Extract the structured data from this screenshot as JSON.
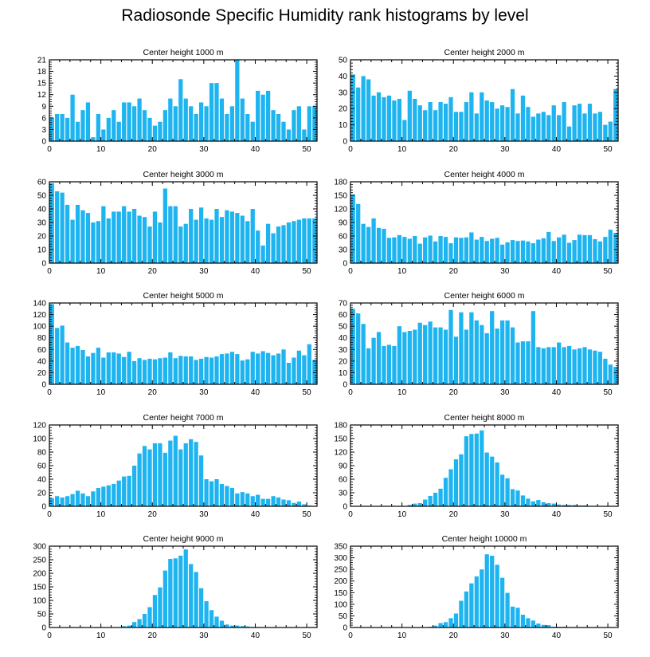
{
  "title": "Radiosonde Specific Humidity rank histograms by level",
  "bar_color": "#1EB4F0",
  "chart_data": [
    {
      "type": "bar",
      "title": "Center height 1000 m",
      "xlim": [
        0,
        52
      ],
      "ylim": [
        0,
        21
      ],
      "xticks": [
        0,
        10,
        20,
        30,
        40,
        50
      ],
      "yticks": [
        0,
        3,
        6,
        9,
        12,
        15,
        18,
        21
      ],
      "values": [
        6,
        7,
        7,
        6,
        12,
        5,
        8,
        10,
        1,
        7,
        3,
        6,
        8,
        5,
        10,
        10,
        9,
        11,
        8,
        6,
        4,
        5,
        8,
        11,
        9,
        16,
        11,
        9,
        7,
        10,
        9,
        15,
        15,
        11,
        7,
        9,
        21,
        11,
        7,
        5,
        13,
        12,
        13,
        8,
        7,
        5,
        3,
        8,
        9,
        3,
        9,
        9
      ]
    },
    {
      "type": "bar",
      "title": "Center height 2000 m",
      "xlim": [
        0,
        52
      ],
      "ylim": [
        0,
        50
      ],
      "xticks": [
        0,
        10,
        20,
        30,
        40,
        50
      ],
      "yticks": [
        0,
        10,
        20,
        30,
        40,
        50
      ],
      "values": [
        41,
        33,
        40,
        38,
        28,
        30,
        27,
        28,
        25,
        26,
        13,
        31,
        26,
        22,
        19,
        24,
        19,
        24,
        23,
        27,
        18,
        18,
        24,
        30,
        17,
        30,
        25,
        24,
        20,
        22,
        21,
        32,
        17,
        28,
        21,
        15,
        17,
        18,
        16,
        22,
        16,
        24,
        9,
        22,
        23,
        17,
        23,
        17,
        18,
        10,
        12,
        32
      ]
    },
    {
      "type": "bar",
      "title": "Center height 3000 m",
      "xlim": [
        0,
        52
      ],
      "ylim": [
        0,
        60
      ],
      "xticks": [
        0,
        10,
        20,
        30,
        40,
        50
      ],
      "yticks": [
        0,
        10,
        20,
        30,
        40,
        50,
        60
      ],
      "values": [
        59,
        53,
        52,
        43,
        32,
        43,
        39,
        37,
        30,
        31,
        42,
        33,
        38,
        38,
        42,
        38,
        40,
        35,
        34,
        27,
        38,
        30,
        55,
        42,
        42,
        27,
        29,
        40,
        32,
        41,
        33,
        32,
        40,
        34,
        39,
        38,
        37,
        35,
        31,
        40,
        24,
        13,
        29,
        22,
        27,
        28,
        30,
        31,
        32,
        33,
        33,
        33
      ]
    },
    {
      "type": "bar",
      "title": "Center height 4000 m",
      "xlim": [
        0,
        52
      ],
      "ylim": [
        0,
        180
      ],
      "xticks": [
        0,
        10,
        20,
        30,
        40,
        50
      ],
      "yticks": [
        0,
        30,
        60,
        90,
        120,
        150,
        180
      ],
      "values": [
        152,
        131,
        87,
        80,
        99,
        78,
        76,
        56,
        57,
        62,
        58,
        54,
        60,
        43,
        57,
        61,
        48,
        60,
        58,
        44,
        57,
        56,
        57,
        68,
        52,
        58,
        49,
        54,
        56,
        41,
        46,
        51,
        49,
        50,
        48,
        44,
        52,
        55,
        69,
        49,
        57,
        63,
        45,
        51,
        63,
        62,
        62,
        53,
        48,
        58,
        74,
        67
      ]
    },
    {
      "type": "bar",
      "title": "Center height 5000 m",
      "xlim": [
        0,
        52
      ],
      "ylim": [
        0,
        140
      ],
      "xticks": [
        0,
        10,
        20,
        30,
        40,
        50
      ],
      "yticks": [
        0,
        20,
        40,
        60,
        80,
        100,
        120,
        140
      ],
      "values": [
        138,
        97,
        101,
        72,
        63,
        66,
        59,
        48,
        54,
        63,
        46,
        55,
        55,
        53,
        47,
        56,
        40,
        45,
        42,
        44,
        43,
        45,
        46,
        55,
        45,
        49,
        48,
        48,
        42,
        44,
        47,
        46,
        48,
        52,
        53,
        56,
        52,
        41,
        43,
        56,
        53,
        57,
        54,
        50,
        53,
        60,
        37,
        46,
        58,
        50,
        69,
        42
      ]
    },
    {
      "type": "bar",
      "title": "Center height 6000 m",
      "xlim": [
        0,
        52
      ],
      "ylim": [
        0,
        70
      ],
      "xticks": [
        0,
        10,
        20,
        30,
        40,
        50
      ],
      "yticks": [
        0,
        10,
        20,
        30,
        40,
        50,
        60,
        70
      ],
      "values": [
        65,
        61,
        52,
        31,
        40,
        45,
        33,
        34,
        33,
        50,
        45,
        46,
        47,
        53,
        51,
        54,
        49,
        49,
        47,
        64,
        41,
        62,
        47,
        62,
        55,
        51,
        44,
        63,
        48,
        55,
        55,
        49,
        36,
        37,
        37,
        63,
        32,
        31,
        32,
        32,
        36,
        32,
        33,
        30,
        31,
        32,
        30,
        29,
        28,
        22,
        17,
        15
      ]
    },
    {
      "type": "bar",
      "title": "Center height 7000 m",
      "xlim": [
        0,
        52
      ],
      "ylim": [
        0,
        120
      ],
      "xticks": [
        0,
        10,
        20,
        30,
        40,
        50
      ],
      "yticks": [
        0,
        20,
        40,
        60,
        80,
        100,
        120
      ],
      "values": [
        12,
        15,
        13,
        15,
        18,
        23,
        19,
        15,
        22,
        27,
        29,
        31,
        33,
        38,
        44,
        45,
        60,
        78,
        89,
        84,
        93,
        93,
        79,
        97,
        104,
        84,
        93,
        99,
        95,
        75,
        40,
        37,
        40,
        33,
        30,
        27,
        19,
        21,
        19,
        15,
        17,
        11,
        11,
        15,
        13,
        10,
        9,
        5,
        7,
        3,
        1,
        0
      ]
    },
    {
      "type": "bar",
      "title": "Center height 8000 m",
      "xlim": [
        0,
        52
      ],
      "ylim": [
        0,
        180
      ],
      "xticks": [
        0,
        10,
        20,
        30,
        40,
        50
      ],
      "yticks": [
        0,
        30,
        60,
        90,
        120,
        150,
        180
      ],
      "values": [
        0,
        0,
        0,
        0,
        0,
        0,
        0,
        0,
        0,
        0,
        0,
        3,
        6,
        7,
        15,
        23,
        30,
        39,
        63,
        82,
        104,
        115,
        155,
        160,
        161,
        168,
        119,
        110,
        97,
        70,
        62,
        38,
        35,
        24,
        17,
        11,
        14,
        9,
        7,
        6,
        4,
        3,
        3,
        3,
        2,
        2,
        1,
        1,
        0,
        0,
        0,
        0
      ]
    },
    {
      "type": "bar",
      "title": "Center height 9000 m",
      "xlim": [
        0,
        52
      ],
      "ylim": [
        0,
        300
      ],
      "xticks": [
        0,
        10,
        20,
        30,
        40,
        50
      ],
      "yticks": [
        0,
        50,
        100,
        150,
        200,
        250,
        300
      ],
      "values": [
        0,
        0,
        0,
        0,
        0,
        0,
        0,
        0,
        0,
        0,
        0,
        0,
        0,
        0,
        5,
        7,
        20,
        31,
        50,
        75,
        120,
        148,
        210,
        253,
        255,
        265,
        288,
        234,
        205,
        145,
        97,
        64,
        40,
        25,
        11,
        7,
        7,
        5,
        4,
        2,
        2,
        1,
        1,
        1,
        1,
        1,
        0,
        0,
        0,
        0,
        0,
        0
      ]
    },
    {
      "type": "bar",
      "title": "Center height 10000 m",
      "xlim": [
        0,
        52
      ],
      "ylim": [
        0,
        350
      ],
      "xticks": [
        0,
        10,
        20,
        30,
        40,
        50
      ],
      "yticks": [
        0,
        50,
        100,
        150,
        200,
        250,
        300,
        350
      ],
      "values": [
        0,
        0,
        0,
        0,
        0,
        0,
        0,
        0,
        0,
        0,
        0,
        0,
        0,
        0,
        0,
        3,
        8,
        19,
        23,
        40,
        60,
        115,
        155,
        190,
        220,
        250,
        315,
        309,
        270,
        214,
        149,
        90,
        85,
        55,
        40,
        30,
        17,
        11,
        10,
        3,
        3,
        3,
        2,
        1,
        1,
        1,
        0,
        0,
        0,
        0,
        0,
        0
      ]
    }
  ]
}
